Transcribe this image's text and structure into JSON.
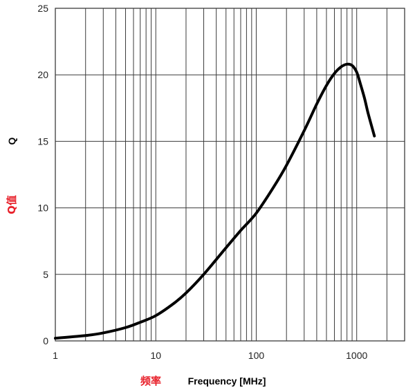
{
  "colors": {
    "grid": "#3a3a3a",
    "curve": "#000000",
    "text": "#222222",
    "annotation": "#e8202a",
    "background": "#ffffff"
  },
  "chart_data": {
    "type": "line",
    "title": "",
    "xlabel": "Frequency [MHz]",
    "ylabel": "Q",
    "annotations": {
      "x": "频率",
      "y": "Q值"
    },
    "x_scale": "log",
    "xlim": [
      1,
      3000
    ],
    "ylim": [
      0,
      25
    ],
    "grid": true,
    "x_tick_labels": [
      "1",
      "10",
      "100",
      "1000"
    ],
    "y_tick_labels": [
      "0",
      "5",
      "10",
      "15",
      "20",
      "25"
    ],
    "series": [
      {
        "x": [
          1,
          2,
          3,
          5,
          7,
          10,
          15,
          20,
          30,
          50,
          70,
          100,
          150,
          200,
          300,
          400,
          500,
          600,
          700,
          800,
          900,
          1000,
          1100,
          1200,
          1300,
          1500
        ],
        "y": [
          0.2,
          0.4,
          0.6,
          1.0,
          1.4,
          1.9,
          2.8,
          3.6,
          5.0,
          7.0,
          8.3,
          9.6,
          11.6,
          13.2,
          15.8,
          17.8,
          19.2,
          20.1,
          20.6,
          20.8,
          20.7,
          20.2,
          19.2,
          18.2,
          17.1,
          15.4
        ]
      }
    ]
  }
}
